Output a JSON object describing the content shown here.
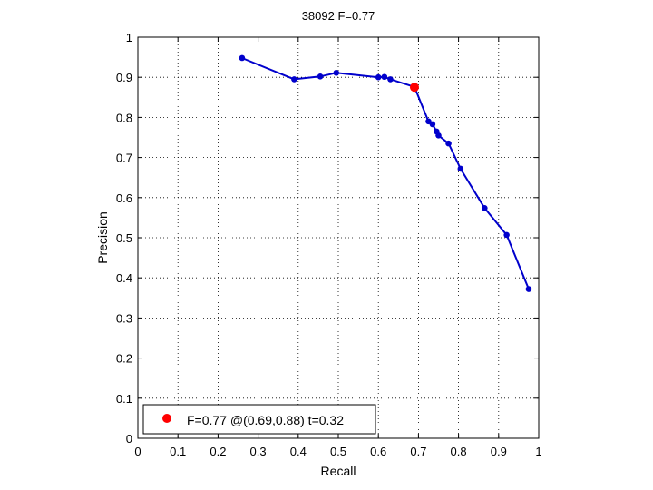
{
  "chart_data": {
    "type": "line",
    "title": "38092 F=0.77",
    "xlabel": "Recall",
    "ylabel": "Precision",
    "xlim": [
      0,
      1
    ],
    "ylim": [
      0,
      1
    ],
    "grid": true,
    "legend_position": "bottom-left",
    "xticks": [
      "0",
      "0.1",
      "0.2",
      "0.3",
      "0.4",
      "0.5",
      "0.6",
      "0.7",
      "0.8",
      "0.9",
      "1"
    ],
    "yticks": [
      "0",
      "0.1",
      "0.2",
      "0.3",
      "0.4",
      "0.5",
      "0.6",
      "0.7",
      "0.8",
      "0.9",
      "1"
    ],
    "series": [
      {
        "color": "#0000cc",
        "marker": "dot",
        "points": [
          {
            "x": 0.26,
            "y": 0.948
          },
          {
            "x": 0.39,
            "y": 0.895
          },
          {
            "x": 0.455,
            "y": 0.902
          },
          {
            "x": 0.495,
            "y": 0.911
          },
          {
            "x": 0.6,
            "y": 0.9
          },
          {
            "x": 0.615,
            "y": 0.901
          },
          {
            "x": 0.63,
            "y": 0.895
          },
          {
            "x": 0.69,
            "y": 0.876
          },
          {
            "x": 0.725,
            "y": 0.79
          },
          {
            "x": 0.735,
            "y": 0.783
          },
          {
            "x": 0.745,
            "y": 0.765
          },
          {
            "x": 0.75,
            "y": 0.755
          },
          {
            "x": 0.775,
            "y": 0.735
          },
          {
            "x": 0.805,
            "y": 0.672
          },
          {
            "x": 0.865,
            "y": 0.574
          },
          {
            "x": 0.92,
            "y": 0.507
          },
          {
            "x": 0.975,
            "y": 0.372
          }
        ]
      }
    ],
    "highlight": {
      "x": 0.69,
      "y": 0.875,
      "color": "#ff0000"
    },
    "legend": {
      "label": "F=0.77 @(0.69,0.88) t=0.32",
      "marker_color": "#ff0000"
    }
  }
}
